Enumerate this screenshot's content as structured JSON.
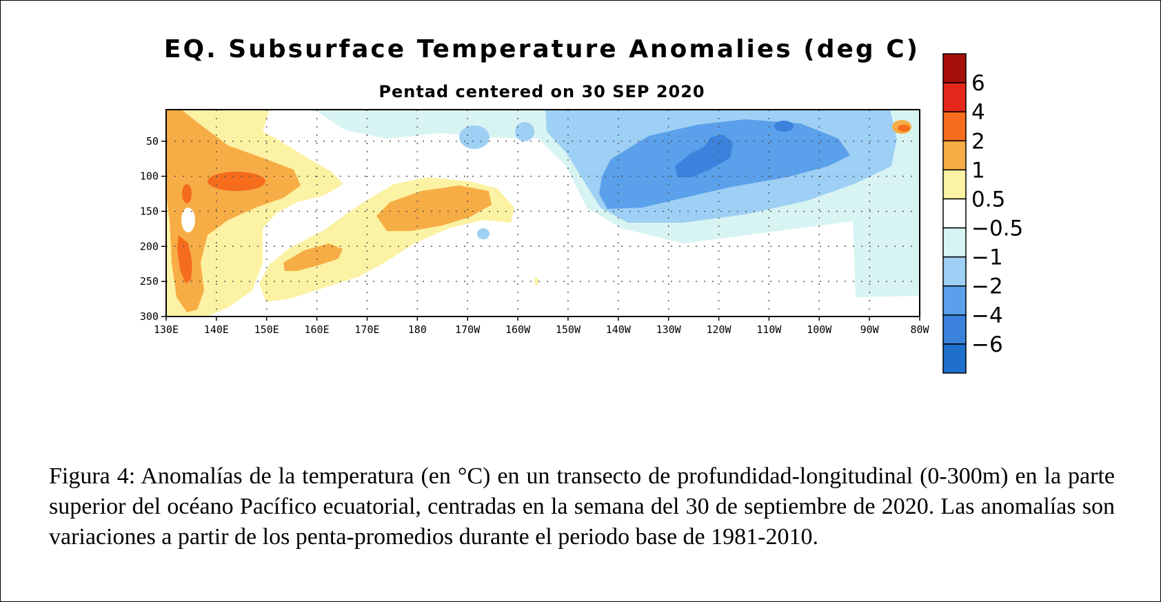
{
  "chart_data": {
    "type": "heatmap",
    "title": "EQ. Subsurface Temperature Anomalies (deg C)",
    "subtitle": "Pentad centered on 30 SEP 2020",
    "x_ticks": [
      "130E",
      "140E",
      "150E",
      "160E",
      "170E",
      "180",
      "170W",
      "160W",
      "150W",
      "140W",
      "130W",
      "120W",
      "110W",
      "100W",
      "90W",
      "80W"
    ],
    "y_ticks": [
      "50",
      "100",
      "150",
      "200",
      "250",
      "300"
    ],
    "xlim": [
      130,
      280
    ],
    "ylim": [
      300,
      5
    ],
    "grid": true,
    "colorbar": {
      "colors": [
        "#1f6fcc",
        "#3a82dc",
        "#5aa0ea",
        "#9ecff4",
        "#d8f4f2",
        "#ffffff",
        "#fbf2a4",
        "#f7ad45",
        "#f46c1c",
        "#e4281c",
        "#a60f0a"
      ],
      "labels": [
        "6",
        "4",
        "2",
        "1",
        "0.5",
        "−0.5",
        "−1",
        "−2",
        "−4",
        "−6"
      ]
    },
    "features": [
      {
        "name": "warm core",
        "lon": 142,
        "depth": 105,
        "value": 2.5
      },
      {
        "name": "warm subsurface",
        "lon": 134,
        "depth": 230,
        "value": 2.5
      },
      {
        "name": "warm tongue",
        "lon": 178,
        "depth": 158,
        "value": 1.5
      },
      {
        "name": "warm lens",
        "lon": 161,
        "depth": 222,
        "value": 1.5
      },
      {
        "name": "cold core",
        "lon": 237,
        "depth": 75,
        "value": -3
      },
      {
        "name": "surface warm spot",
        "lon": 277,
        "depth": 30,
        "value": 3
      }
    ]
  },
  "caption": "Figura 4: Anomalías de la temperatura (en °C) en un transecto de profundidad-longitudinal (0-300m) en la parte superior del océano Pacífico ecuatorial, centradas en la semana del 30 de septiembre de 2020. Las anomalías son variaciones a partir de los penta-promedios durante el periodo base de 1981-2010."
}
